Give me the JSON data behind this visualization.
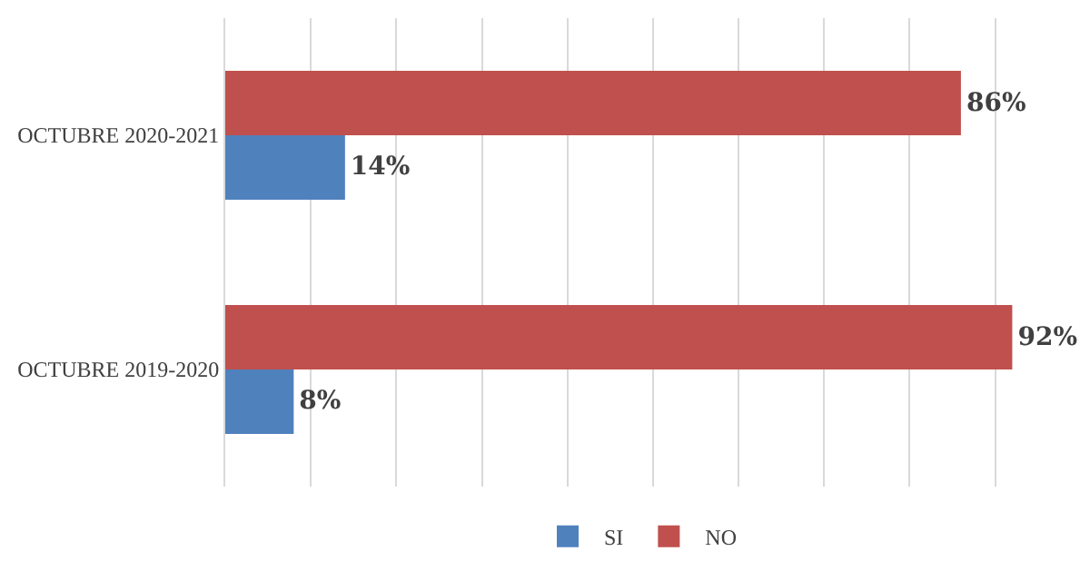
{
  "chart_data": {
    "type": "bar",
    "orientation": "horizontal",
    "categories": [
      "OCTUBRE 2020-2021",
      "OCTUBRE 2019-2020"
    ],
    "series": [
      {
        "name": "SI",
        "color": "#4f81bd",
        "values": [
          14,
          8
        ],
        "value_labels": [
          "14%",
          "8%"
        ]
      },
      {
        "name": "NO",
        "color": "#c0504d",
        "values": [
          86,
          92
        ],
        "value_labels": [
          "86%",
          "92%"
        ]
      }
    ],
    "grid": "x",
    "legend": "bottom",
    "tick_labels": "y"
  }
}
